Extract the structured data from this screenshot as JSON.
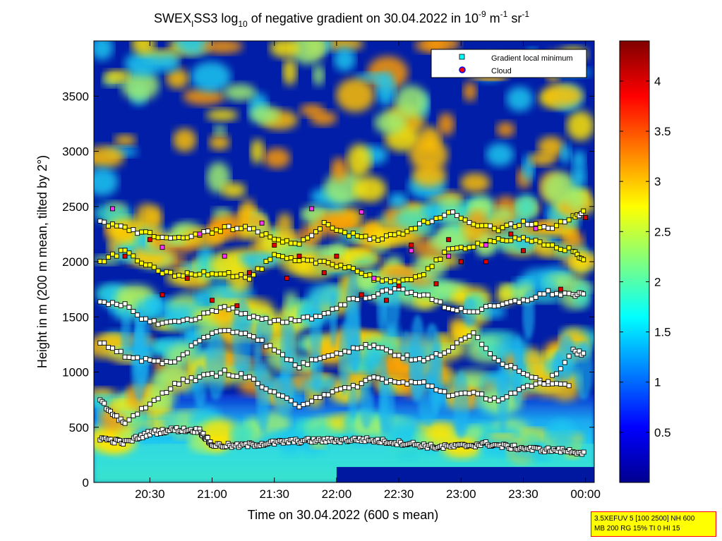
{
  "chart_data": {
    "type": "heatmap",
    "title_parts": {
      "a": "SWEX",
      "a_sub": "I",
      "b": "SS3 log",
      "b_sub": "10",
      "c": " of negative gradient on 30.04.2022 in 10",
      "c_sup": "-9",
      "d": " m",
      "d_sup": "-1",
      "e": " sr",
      "e_sup": "-1"
    },
    "xlabel": "Time on 30.04.2022 (600 s mean)",
    "ylabel": "Height in m (200 m mean, tilted by 2°)",
    "x_ticks": [
      "20:30",
      "21:00",
      "21:30",
      "22:00",
      "22:30",
      "23:00",
      "23:30",
      "00:00"
    ],
    "x_tick_hours": [
      20.5,
      21.0,
      21.5,
      22.0,
      22.5,
      23.0,
      23.5,
      24.0
    ],
    "xlim_hours": [
      20.05,
      24.07
    ],
    "y_ticks": [
      "0",
      "500",
      "1000",
      "1500",
      "2000",
      "2500",
      "3000",
      "3500"
    ],
    "y_tick_values": [
      0,
      500,
      1000,
      1500,
      2000,
      2500,
      3000,
      3500
    ],
    "ylim": [
      0,
      4000
    ],
    "colorbar": {
      "ticks": [
        "0.5",
        "1",
        "1.5",
        "2",
        "2.5",
        "3",
        "3.5",
        "4"
      ],
      "tick_values": [
        0.5,
        1,
        1.5,
        2,
        2.5,
        3,
        3.5,
        4
      ],
      "range": [
        0,
        4.4
      ],
      "colormap": "jet"
    },
    "legend": {
      "placement": "top-right",
      "entries": [
        {
          "label": "Gradient local minimum",
          "marker": "square",
          "color": "#00ffff"
        },
        {
          "label": "Cloud",
          "marker": "circle",
          "color": "#ff0000",
          "edge": "#0000ff"
        }
      ]
    },
    "series": [
      {
        "kind": "gradient-layer",
        "points": [
          [
            20.1,
            400
          ],
          [
            20.3,
            360
          ],
          [
            20.5,
            450
          ],
          [
            20.7,
            480
          ],
          [
            20.9,
            470
          ],
          [
            21.0,
            340
          ],
          [
            21.2,
            330
          ],
          [
            21.4,
            350
          ],
          [
            21.6,
            370
          ],
          [
            21.8,
            380
          ],
          [
            22.0,
            380
          ],
          [
            22.2,
            390
          ],
          [
            22.4,
            370
          ],
          [
            22.6,
            350
          ],
          [
            22.8,
            320
          ],
          [
            23.0,
            330
          ],
          [
            23.2,
            350
          ],
          [
            23.4,
            320
          ],
          [
            23.6,
            300
          ],
          [
            23.8,
            290
          ],
          [
            24.0,
            270
          ]
        ]
      },
      {
        "kind": "gradient-layer",
        "points": [
          [
            20.1,
            1620
          ],
          [
            20.3,
            1600
          ],
          [
            20.5,
            1450
          ],
          [
            20.7,
            1450
          ],
          [
            20.9,
            1500
          ],
          [
            21.1,
            1600
          ],
          [
            21.3,
            1500
          ],
          [
            21.5,
            1450
          ],
          [
            21.7,
            1480
          ],
          [
            21.9,
            1520
          ],
          [
            22.1,
            1650
          ],
          [
            22.3,
            1700
          ],
          [
            22.5,
            1750
          ],
          [
            22.7,
            1700
          ],
          [
            22.9,
            1580
          ],
          [
            23.1,
            1550
          ],
          [
            23.3,
            1600
          ],
          [
            23.5,
            1650
          ],
          [
            23.7,
            1720
          ],
          [
            23.9,
            1700
          ],
          [
            24.0,
            1700
          ]
        ]
      },
      {
        "kind": "gradient-layer",
        "points": [
          [
            20.1,
            2000
          ],
          [
            20.3,
            2100
          ],
          [
            20.5,
            1950
          ],
          [
            20.7,
            1870
          ],
          [
            20.9,
            1900
          ],
          [
            21.1,
            1900
          ],
          [
            21.3,
            1850
          ],
          [
            21.5,
            2050
          ],
          [
            21.7,
            2000
          ],
          [
            21.9,
            2000
          ],
          [
            22.1,
            1950
          ],
          [
            22.3,
            1850
          ],
          [
            22.5,
            1800
          ],
          [
            22.7,
            1900
          ],
          [
            22.9,
            2100
          ],
          [
            23.1,
            2150
          ],
          [
            23.3,
            2200
          ],
          [
            23.5,
            2200
          ],
          [
            23.7,
            2150
          ],
          [
            23.9,
            2100
          ],
          [
            24.0,
            2000
          ]
        ]
      },
      {
        "kind": "gradient-layer",
        "points": [
          [
            20.1,
            2350
          ],
          [
            20.3,
            2300
          ],
          [
            20.5,
            2250
          ],
          [
            20.7,
            2200
          ],
          [
            20.9,
            2250
          ],
          [
            21.1,
            2300
          ],
          [
            21.3,
            2300
          ],
          [
            21.5,
            2200
          ],
          [
            21.7,
            2150
          ],
          [
            21.9,
            2350
          ],
          [
            22.1,
            2250
          ],
          [
            22.3,
            2200
          ],
          [
            22.5,
            2250
          ],
          [
            22.7,
            2350
          ],
          [
            22.9,
            2450
          ],
          [
            23.1,
            2350
          ],
          [
            23.3,
            2300
          ],
          [
            23.5,
            2350
          ],
          [
            23.7,
            2300
          ],
          [
            23.9,
            2400
          ],
          [
            24.0,
            2450
          ]
        ]
      },
      {
        "kind": "gradient-layer",
        "points": [
          [
            20.1,
            1280
          ],
          [
            20.3,
            1150
          ],
          [
            20.5,
            1100
          ],
          [
            20.7,
            1080
          ],
          [
            20.9,
            1300
          ],
          [
            21.1,
            1380
          ],
          [
            21.3,
            1350
          ],
          [
            21.5,
            1200
          ],
          [
            21.7,
            1050
          ],
          [
            21.9,
            1150
          ],
          [
            22.1,
            1200
          ],
          [
            22.3,
            1250
          ],
          [
            22.5,
            1150
          ],
          [
            22.7,
            1100
          ],
          [
            22.9,
            1200
          ],
          [
            23.1,
            1350
          ],
          [
            23.3,
            1100
          ],
          [
            23.5,
            1000
          ],
          [
            23.7,
            900
          ],
          [
            23.9,
            1200
          ],
          [
            24.0,
            1150
          ]
        ]
      },
      {
        "kind": "gradient-layer",
        "points": [
          [
            20.1,
            750
          ],
          [
            20.2,
            600
          ],
          [
            20.3,
            550
          ],
          [
            20.5,
            700
          ],
          [
            20.7,
            900
          ],
          [
            20.9,
            950
          ],
          [
            21.1,
            1000
          ],
          [
            21.3,
            950
          ],
          [
            21.5,
            800
          ],
          [
            21.7,
            700
          ],
          [
            21.9,
            800
          ],
          [
            22.1,
            850
          ],
          [
            22.3,
            950
          ],
          [
            22.5,
            900
          ],
          [
            22.7,
            900
          ],
          [
            22.9,
            800
          ],
          [
            23.1,
            800
          ],
          [
            23.3,
            750
          ],
          [
            23.5,
            850
          ],
          [
            23.7,
            900
          ],
          [
            23.9,
            880
          ]
        ]
      }
    ],
    "cloud_points": [
      [
        20.3,
        2050
      ],
      [
        20.5,
        2200
      ],
      [
        20.8,
        1850
      ],
      [
        21.0,
        1650
      ],
      [
        21.3,
        1900
      ],
      [
        21.5,
        2150
      ],
      [
        21.7,
        2050
      ],
      [
        21.9,
        1900
      ],
      [
        22.2,
        1700
      ],
      [
        22.4,
        1650
      ],
      [
        22.6,
        2150
      ],
      [
        22.8,
        1800
      ],
      [
        23.0,
        2000
      ],
      [
        23.2,
        2000
      ],
      [
        23.5,
        2100
      ],
      [
        23.8,
        1750
      ],
      [
        24.0,
        2400
      ],
      [
        20.6,
        1700
      ],
      [
        21.2,
        1600
      ],
      [
        22.0,
        2050
      ],
      [
        22.9,
        2200
      ],
      [
        23.4,
        2250
      ],
      [
        21.6,
        1850
      ],
      [
        22.5,
        1780
      ]
    ],
    "magenta_points": [
      [
        20.2,
        2480
      ],
      [
        20.6,
        2130
      ],
      [
        21.1,
        2050
      ],
      [
        21.4,
        2350
      ],
      [
        21.8,
        2480
      ],
      [
        22.2,
        2450
      ],
      [
        22.6,
        2100
      ],
      [
        22.9,
        2050
      ],
      [
        23.2,
        2150
      ],
      [
        20.9,
        2250
      ],
      [
        22.3,
        1850
      ],
      [
        23.6,
        2300
      ]
    ]
  },
  "info_box": {
    "line1": "3.5XEFUV 5 [100 2500] NH 600",
    "line2": "MB 200 RG 15% TI 0 HI 15"
  }
}
